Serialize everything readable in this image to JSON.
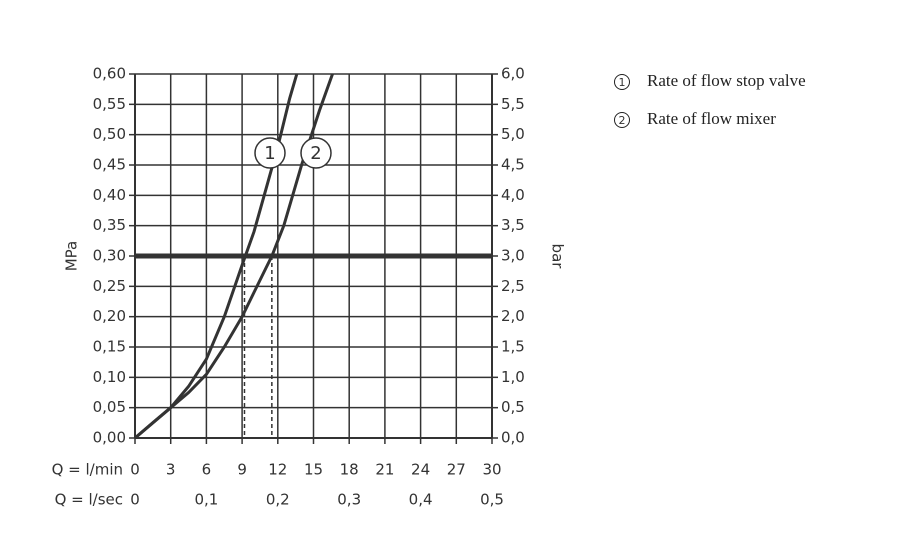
{
  "chart_data": {
    "type": "line",
    "xlabel": "Q = l/min",
    "x2label": "Q = l/sec",
    "ylabel": "MPa",
    "y2label": "bar",
    "xlim": [
      0,
      30
    ],
    "xticks": [
      0,
      3,
      6,
      9,
      12,
      15,
      18,
      21,
      24,
      27,
      30
    ],
    "x2lim": [
      0,
      0.5
    ],
    "x2ticks": [
      0,
      {
        "value": 0.1,
        "label": "0,1"
      },
      {
        "value": 0.2,
        "label": "0,2"
      },
      {
        "value": 0.3,
        "label": "0,3"
      },
      {
        "value": 0.4,
        "label": "0,4"
      },
      {
        "value": 0.5,
        "label": "0,5"
      }
    ],
    "ylim": [
      0,
      0.6
    ],
    "yticks": [
      {
        "value": 0,
        "label": "0,00"
      },
      {
        "value": 0.05,
        "label": "0,05"
      },
      {
        "value": 0.1,
        "label": "0,10"
      },
      {
        "value": 0.15,
        "label": "0,15"
      },
      {
        "value": 0.2,
        "label": "0,20"
      },
      {
        "value": 0.25,
        "label": "0,25"
      },
      {
        "value": 0.3,
        "label": "0,30"
      },
      {
        "value": 0.35,
        "label": "0,35"
      },
      {
        "value": 0.4,
        "label": "0,40"
      },
      {
        "value": 0.45,
        "label": "0,45"
      },
      {
        "value": 0.5,
        "label": "0,50"
      },
      {
        "value": 0.55,
        "label": "0,55"
      },
      {
        "value": 0.6,
        "label": "0,60"
      }
    ],
    "y2lim": [
      0,
      6
    ],
    "y2ticks": [
      {
        "value": 0,
        "label": "0,0"
      },
      {
        "value": 0.5,
        "label": "0,5"
      },
      {
        "value": 1,
        "label": "1,0"
      },
      {
        "value": 1.5,
        "label": "1,5"
      },
      {
        "value": 2,
        "label": "2,0"
      },
      {
        "value": 2.5,
        "label": "2,5"
      },
      {
        "value": 3,
        "label": "3,0"
      },
      {
        "value": 3.5,
        "label": "3,5"
      },
      {
        "value": 4,
        "label": "4,0"
      },
      {
        "value": 4.5,
        "label": "4,5"
      },
      {
        "value": 5,
        "label": "5,0"
      },
      {
        "value": 5.5,
        "label": "5,5"
      },
      {
        "value": 6,
        "label": "6,0"
      }
    ],
    "grid": true,
    "hline": 0.3,
    "vlines": [
      9.2,
      11.5
    ],
    "series": [
      {
        "name": "Rate of flow stop valve",
        "marker": "1",
        "color": "#333333",
        "x": [
          0,
          1.5,
          3,
          4.5,
          6,
          7.5,
          9,
          10,
          11,
          12,
          13,
          13.6
        ],
        "values": [
          0,
          0.025,
          0.05,
          0.085,
          0.13,
          0.2,
          0.285,
          0.34,
          0.41,
          0.48,
          0.56,
          0.6
        ]
      },
      {
        "name": "Rate of flow mixer",
        "marker": "2",
        "color": "#333333",
        "x": [
          0,
          1.5,
          3,
          4.5,
          6,
          7.5,
          9,
          10,
          11,
          11.5,
          12.5,
          14,
          15.5,
          16.6
        ],
        "values": [
          0,
          0.025,
          0.05,
          0.075,
          0.105,
          0.15,
          0.2,
          0.24,
          0.28,
          0.3,
          0.35,
          0.45,
          0.54,
          0.6
        ]
      }
    ]
  }
}
